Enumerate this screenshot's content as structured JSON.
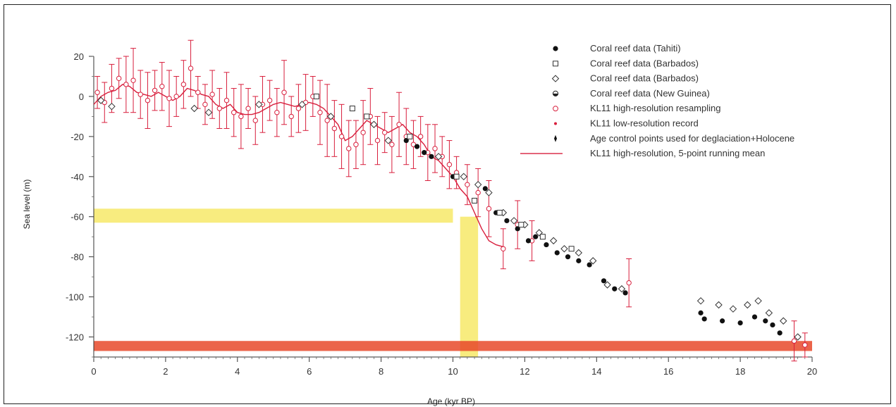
{
  "chart_data": {
    "type": "scatter",
    "title": "",
    "xlabel": "Age (kyr BP)",
    "ylabel": "Sea level (m)",
    "xlim": [
      0,
      20
    ],
    "ylim": [
      -130,
      20
    ],
    "x_ticks": [
      0,
      2,
      4,
      6,
      8,
      10,
      12,
      14,
      16,
      18,
      20
    ],
    "y_ticks": [
      20,
      0,
      -20,
      -40,
      -60,
      -80,
      -100,
      -120
    ],
    "grid": false,
    "legend_position": "top-right",
    "legend": [
      {
        "label": "Coral reef data (Tahiti)",
        "marker": "filled-circle"
      },
      {
        "label": "Coral reef data (Barbados)",
        "marker": "open-square"
      },
      {
        "label": "Coral reef data (Barbados)",
        "marker": "open-diamond"
      },
      {
        "label": "Coral reef data (New Guinea)",
        "marker": "half-circle"
      },
      {
        "label": "KL11 high-resolution resampling",
        "marker": "open-circle-red"
      },
      {
        "label": "KL11 low-resolution record",
        "marker": "red-dot"
      },
      {
        "label": "Age control points used for deglaciation+Holocene",
        "marker": "black-dash"
      },
      {
        "label": "KL11 high-resolution, 5-point running mean",
        "marker": "red-line"
      }
    ],
    "highlights": [
      {
        "kind": "horizontal-band",
        "color": "#f5e23a",
        "y_range": [
          -56,
          -63
        ],
        "x_range": [
          0,
          10
        ]
      },
      {
        "kind": "vertical-band",
        "color": "#f5e23a",
        "x_range": [
          10.2,
          10.7
        ],
        "y_range": [
          -130,
          -60
        ]
      },
      {
        "kind": "horizontal-band",
        "color": "#e8492a",
        "y_range": [
          -122,
          -127
        ],
        "x_range": [
          0,
          20
        ]
      }
    ],
    "colors": {
      "red_series": "#d81e3c",
      "yellow_band": "#f5e23a",
      "orange_band": "#e8492a",
      "black_series": "#111111"
    },
    "series": [
      {
        "name": "KL11 high-resolution, 5-point running mean",
        "kind": "line",
        "x": [
          0.0,
          0.2,
          0.4,
          0.6,
          0.8,
          1.0,
          1.2,
          1.4,
          1.6,
          1.8,
          2.0,
          2.2,
          2.4,
          2.6,
          2.8,
          3.0,
          3.2,
          3.4,
          3.6,
          3.8,
          4.0,
          4.2,
          4.4,
          4.6,
          4.8,
          5.0,
          5.2,
          5.4,
          5.6,
          5.8,
          6.0,
          6.2,
          6.4,
          6.6,
          6.8,
          7.0,
          7.2,
          7.4,
          7.6,
          7.8,
          8.0,
          8.2,
          8.4,
          8.6,
          8.8,
          9.0,
          9.2,
          9.4,
          9.6,
          9.8,
          10.0,
          10.2,
          10.4,
          10.6,
          10.8,
          11.0,
          11.2,
          11.4
        ],
        "y": [
          -4,
          0,
          2,
          3,
          6,
          5,
          2,
          1,
          0,
          2,
          0,
          -2,
          0,
          4,
          3,
          1,
          0,
          -4,
          -6,
          -4,
          -8,
          -9,
          -9,
          -8,
          -6,
          -4,
          -3,
          -4,
          -5,
          -4,
          -3,
          -4,
          -6,
          -10,
          -14,
          -22,
          -20,
          -16,
          -12,
          -14,
          -16,
          -18,
          -16,
          -14,
          -18,
          -20,
          -24,
          -30,
          -32,
          -36,
          -40,
          -46,
          -50,
          -58,
          -66,
          -72,
          -74,
          -75
        ]
      },
      {
        "name": "KL11 high-resolution resampling",
        "kind": "scatter-errorbar",
        "x": [
          0.1,
          0.3,
          0.5,
          0.7,
          0.9,
          1.1,
          1.3,
          1.5,
          1.7,
          1.9,
          2.1,
          2.3,
          2.5,
          2.7,
          2.9,
          3.1,
          3.3,
          3.5,
          3.7,
          3.9,
          4.1,
          4.3,
          4.5,
          4.7,
          4.9,
          5.1,
          5.3,
          5.5,
          5.7,
          5.9,
          6.1,
          6.3,
          6.5,
          6.7,
          6.9,
          7.1,
          7.3,
          7.5,
          7.7,
          7.9,
          8.1,
          8.3,
          8.5,
          8.7,
          8.9,
          9.1,
          9.3,
          9.5,
          9.7,
          9.9,
          10.1,
          10.4,
          10.7,
          11.0,
          11.4,
          11.8,
          12.2
        ],
        "y": [
          2,
          -3,
          4,
          9,
          6,
          8,
          1,
          -2,
          3,
          5,
          -1,
          0,
          6,
          14,
          2,
          -4,
          1,
          -6,
          -2,
          -8,
          -10,
          -6,
          -12,
          -4,
          -2,
          -8,
          2,
          -10,
          -6,
          -3,
          0,
          -8,
          -12,
          -16,
          -20,
          -26,
          -24,
          -18,
          -10,
          -22,
          -18,
          -24,
          -14,
          -20,
          -24,
          -20,
          -28,
          -26,
          -30,
          -34,
          -38,
          -44,
          -48,
          -56,
          -76,
          -64,
          -72
        ],
        "err": [
          8,
          10,
          12,
          10,
          14,
          16,
          12,
          14,
          10,
          12,
          14,
          10,
          12,
          14,
          8,
          10,
          12,
          10,
          14,
          12,
          16,
          10,
          12,
          14,
          10,
          12,
          16,
          10,
          12,
          14,
          10,
          16,
          18,
          14,
          16,
          14,
          12,
          16,
          14,
          12,
          10,
          14,
          16,
          14,
          12,
          10,
          14,
          12,
          10,
          12,
          8,
          10,
          12,
          14,
          10,
          12,
          10
        ]
      },
      {
        "name": "Coral reef data (Tahiti)",
        "kind": "scatter",
        "x": [
          8.7,
          9.0,
          9.2,
          9.4,
          10.0,
          10.6,
          10.9,
          11.2,
          11.5,
          11.8,
          12.1,
          12.3,
          12.6,
          12.9,
          13.2,
          13.5,
          13.8,
          14.2,
          14.5,
          14.8,
          16.9,
          17.0,
          17.5,
          18.0,
          18.4,
          18.7,
          18.9,
          19.1
        ],
        "y": [
          -22,
          -25,
          -28,
          -30,
          -40,
          -52,
          -46,
          -58,
          -62,
          -66,
          -72,
          -70,
          -74,
          -78,
          -80,
          -82,
          -84,
          -92,
          -96,
          -98,
          -108,
          -111,
          -112,
          -113,
          -110,
          -112,
          -114,
          -118
        ]
      },
      {
        "name": "Coral reef data (Barbados)",
        "kind": "scatter",
        "marker": "open-diamond",
        "x": [
          0.2,
          0.5,
          2.8,
          3.2,
          4.6,
          5.8,
          6.6,
          7.8,
          8.2,
          9.6,
          10.3,
          10.7,
          11.0,
          11.4,
          11.7,
          12.0,
          12.4,
          12.8,
          13.1,
          13.5,
          13.9,
          14.3,
          14.7,
          16.9,
          17.4,
          17.8,
          18.2,
          18.5,
          18.8,
          19.2,
          19.6
        ],
        "y": [
          -2,
          -5,
          -6,
          -8,
          -4,
          -4,
          -10,
          -14,
          -22,
          -30,
          -40,
          -44,
          -48,
          -58,
          -62,
          -64,
          -68,
          -72,
          -76,
          -78,
          -82,
          -94,
          -96,
          -102,
          -104,
          -106,
          -104,
          -102,
          -108,
          -112,
          -120
        ]
      },
      {
        "name": "Coral reef data (Barbados)",
        "kind": "scatter",
        "marker": "open-square",
        "x": [
          6.2,
          7.2,
          7.6,
          8.8,
          10.1,
          10.6,
          11.3,
          11.9,
          12.5,
          13.3
        ],
        "y": [
          0,
          -6,
          -10,
          -20,
          -40,
          -52,
          -58,
          -64,
          -70,
          -76
        ]
      },
      {
        "name": "KL11 low-resolution record",
        "kind": "scatter-errorbar",
        "x": [
          14.9,
          19.5,
          19.8
        ],
        "y": [
          -93,
          -122,
          -124
        ],
        "err": [
          12,
          10,
          6
        ]
      }
    ]
  }
}
